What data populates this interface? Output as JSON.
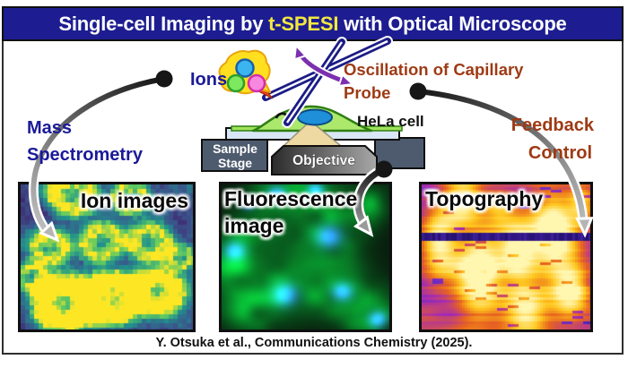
{
  "title": {
    "prefix": "Single-cell Imaging by ",
    "highlight": "t-SPESI",
    "suffix": " with Optical Microscope"
  },
  "schematic": {
    "ions_label": "Ions",
    "oscillation_label_line1": "Oscillation of Capillary",
    "oscillation_label_line2": "Probe",
    "hela_cell_label": "HeLa cell",
    "sample_stage_line1": "Sample",
    "sample_stage_line2": "Stage",
    "objective_label": "Objective",
    "mass_spectrometry_line1": "Mass",
    "mass_spectrometry_line2": "Spectrometry",
    "feedback_line1": "Feedback",
    "feedback_line2": "Control"
  },
  "panels": [
    {
      "id": "ion-images",
      "label": "Ion images",
      "palette": [
        "#440154",
        "#3b528b",
        "#21918c",
        "#5ec962",
        "#fde725"
      ]
    },
    {
      "id": "fluorescence",
      "label_line1": "Fluorescence",
      "label_line2": "image",
      "colors": {
        "background": "#000000",
        "cell_green": "#21a636",
        "nucleus_blue": "#2f86ff"
      }
    },
    {
      "id": "topography",
      "label": "Topography",
      "palette": [
        "#10084d",
        "#5a2bc8",
        "#a82bb0",
        "#e8641e",
        "#ffc81e",
        "#fff6b0"
      ]
    }
  ],
  "caption": "Y. Otsuka et al., Communications Chemistry (2025).",
  "colors": {
    "banner_background": "#1d1d91",
    "banner_text": "#ffffff",
    "banner_highlight": "#f3e83e",
    "navy_text": "#1a1a99",
    "brown_text": "#9e3a14",
    "probe_navy": "#1c1c86",
    "oscillation_purple": "#7c2fae",
    "stage_gray": "#4e5b6e",
    "slide_blue": "#d8e6f5",
    "cell_green": "#abe86c",
    "nucleus_blue": "#1e8fd8",
    "light_cone_tan": "#eed9a2",
    "ion_blob_yellow": "#ffdf1f"
  }
}
